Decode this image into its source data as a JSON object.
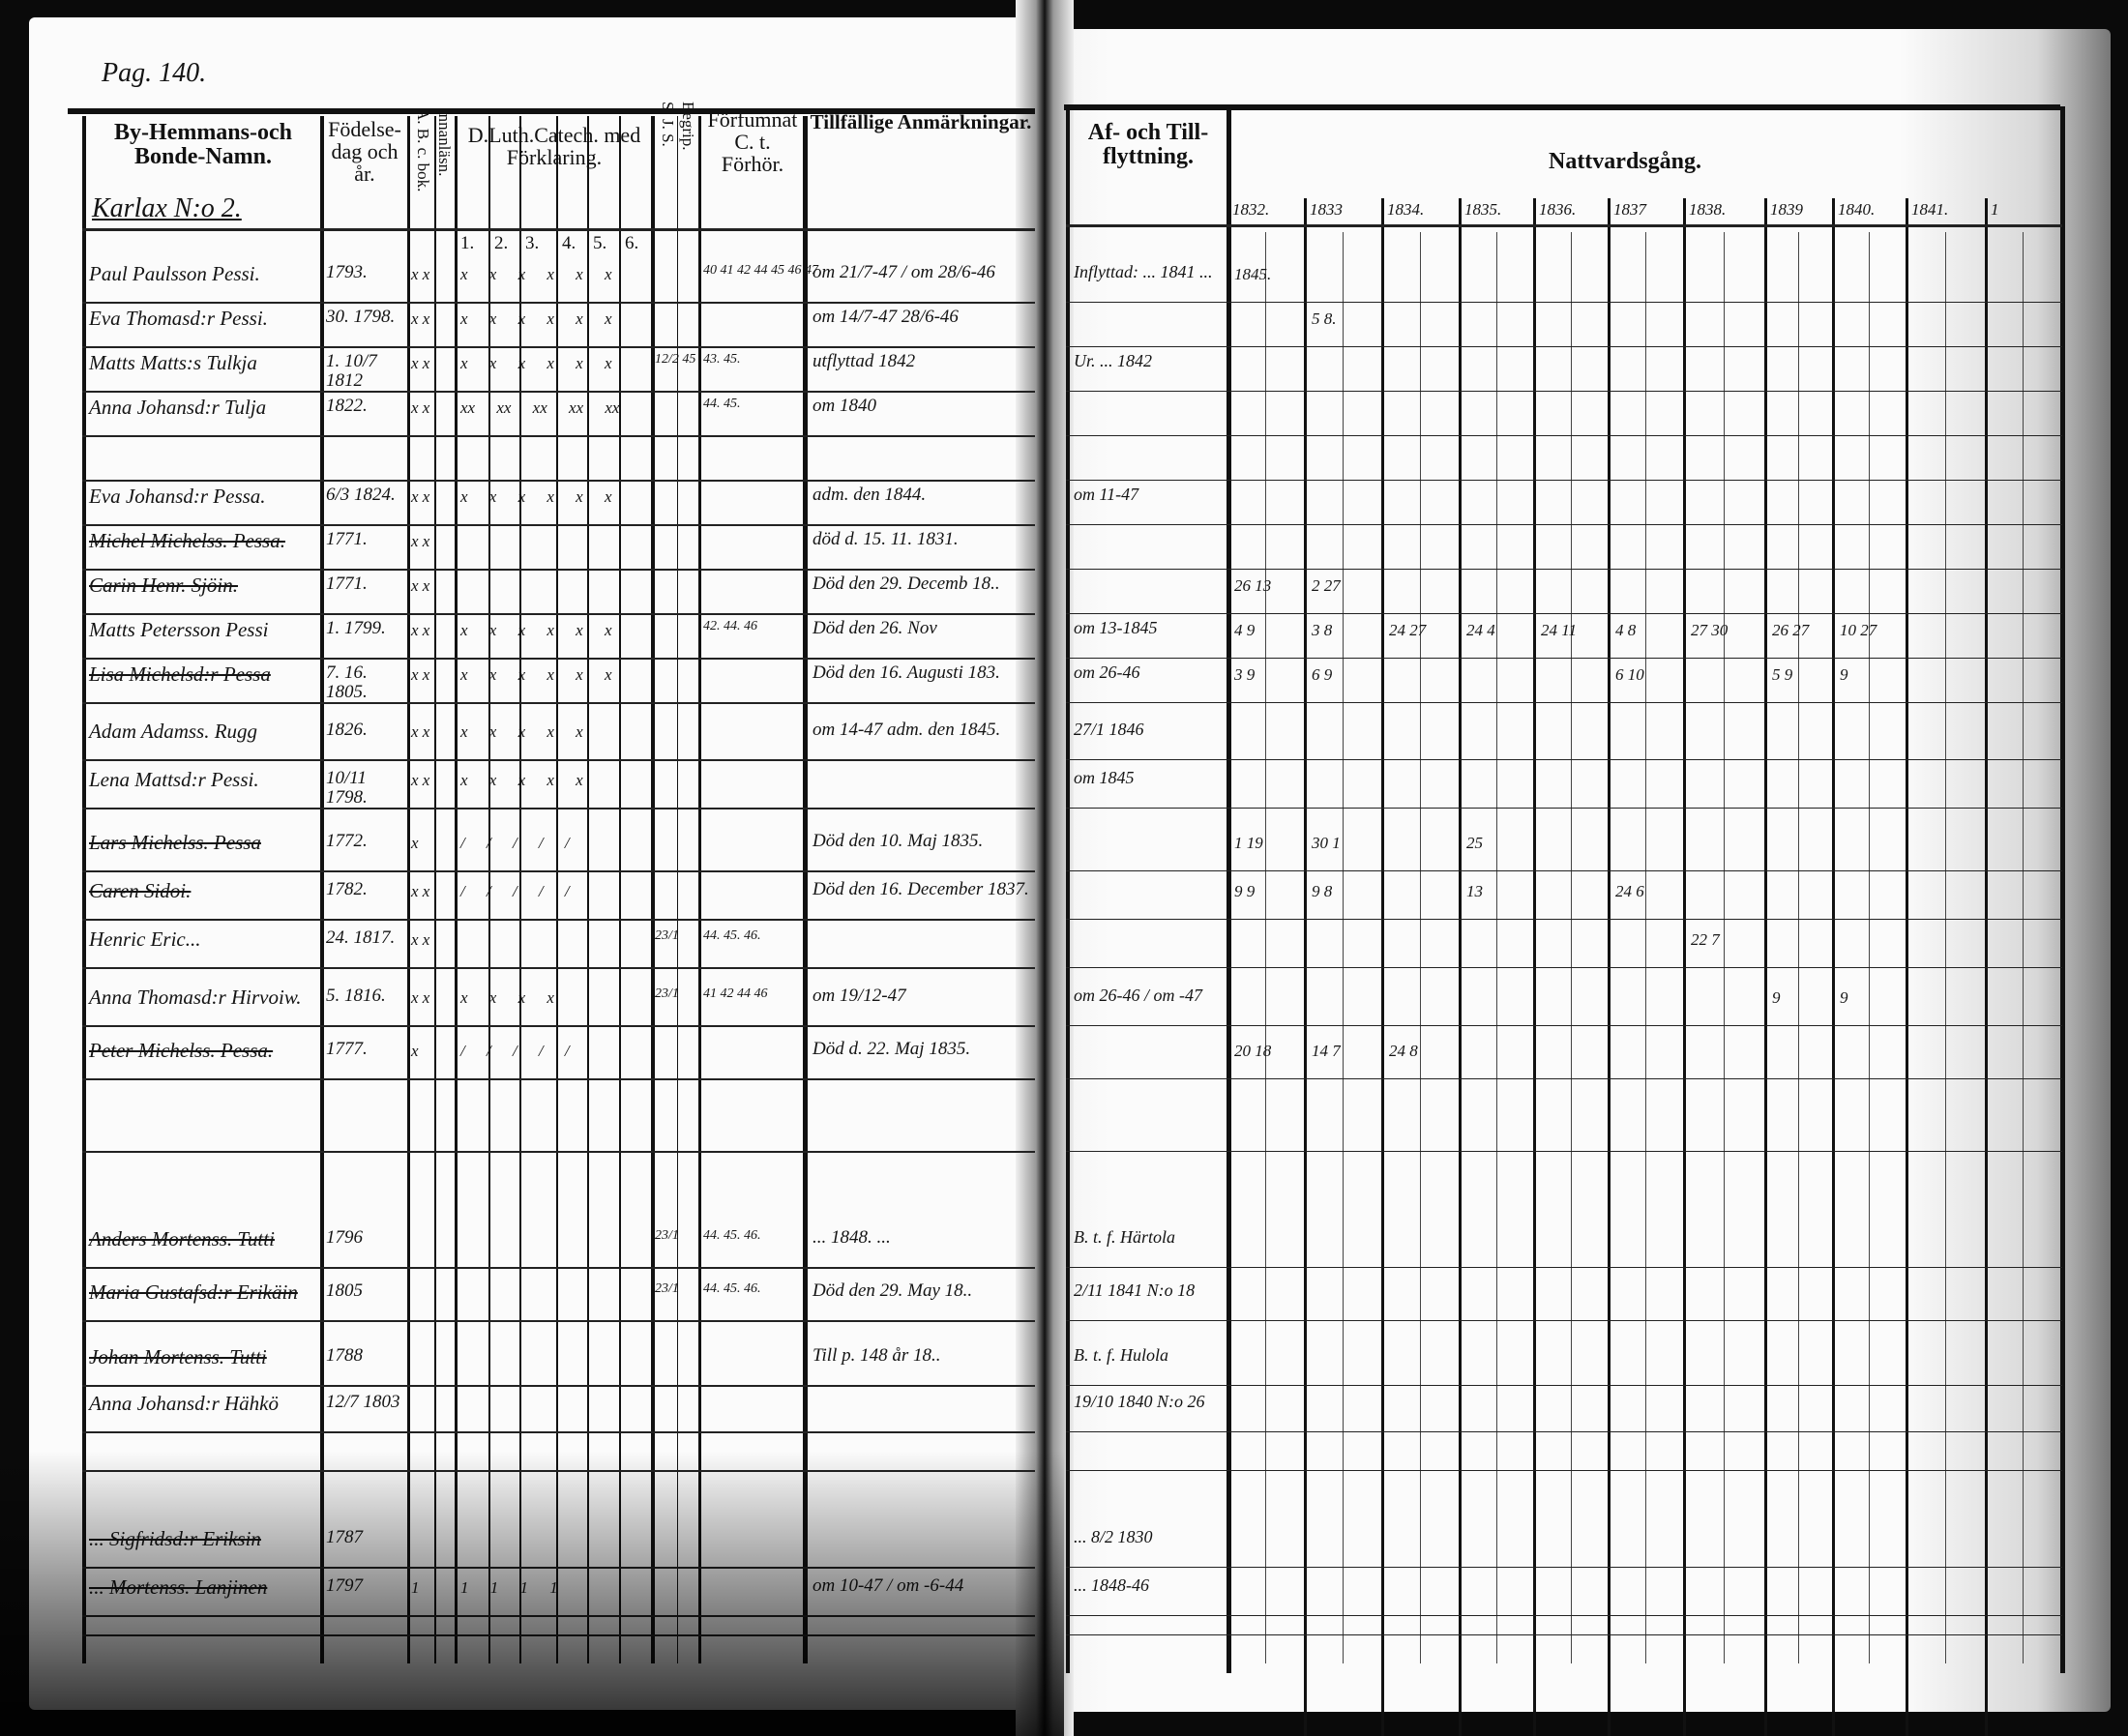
{
  "page_label": "Pag. 140.",
  "left_headers": {
    "name": "By-Hemmans-och Bonde-Namn.",
    "birth": "Födelse-dag och år.",
    "abc": "A. B. c. bok.",
    "innanlasn": "Innanläsn.",
    "catech": "D.Luth.Catech. med Förklaring.",
    "catech_parts": [
      "1.",
      "2.",
      "3.",
      "4.",
      "5.",
      "6."
    ],
    "sjs": "S. J. S.",
    "begrip": "Begrip.",
    "forfum": "Förfumnat C. t. Förhör.",
    "remarks": "Tillfällige Anmärkningar."
  },
  "right_headers": {
    "moved": "Af- och Till-flyttning.",
    "communion": "Nattvardsgång.",
    "years": [
      "1832.",
      "1833",
      "1834.",
      "1835.",
      "1836.",
      "1837",
      "1838.",
      "1839",
      "1840.",
      "1841.",
      "1"
    ]
  },
  "village": "Karlax N:o 2.",
  "rows": [
    {
      "name": "Paul Paulsson Pessi.",
      "birth": "1793.",
      "abc": "x x",
      "cat": "x x x x x x",
      "forh": "40 41 42 44 45 46 47",
      "remark": "om 21/7-47 / om 28/6-46",
      "moved": "Inflyttad: ... 1841 ...",
      "struck": false
    },
    {
      "name": "Eva Thomasd:r Pessi.",
      "birth": "30. 1798.",
      "abc": "x x",
      "cat": "x x x x x x",
      "forh": "",
      "remark": "om 14/7-47 28/6-46",
      "moved": "",
      "struck": false
    },
    {
      "name": "Matts Matts:s Tulkja",
      "birth": "1. 10/7 1812",
      "abc": "x x",
      "cat": "x x x x x x",
      "sjs": "12/2 45",
      "forh": "43. 45.",
      "remark": "utflyttad 1842",
      "moved": "Ur. ... 1842",
      "struck": false
    },
    {
      "name": "Anna Johansd:r Tulja",
      "birth": "1822.",
      "abc": "x x",
      "cat": "xx xx xx xx xx",
      "forh": "44. 45.",
      "remark": "om 1840",
      "moved": "",
      "struck": false
    },
    {
      "name": "",
      "birth": "",
      "abc": "",
      "cat": "",
      "forh": "",
      "remark": "",
      "moved": "",
      "struck": false
    },
    {
      "name": "Eva Johansd:r Pessa.",
      "birth": "6/3 1824.",
      "abc": "x x",
      "cat": "x x x x x x",
      "forh": "",
      "remark": "adm. den 1844.",
      "moved": "om 11-47",
      "struck": false
    },
    {
      "name": "Michel Michelss. Pessa.",
      "birth": "1771.",
      "abc": "x x",
      "cat": "",
      "forh": "",
      "remark": "död d. 15. 11. 1831.",
      "moved": "",
      "struck": true
    },
    {
      "name": "Carin Henr. Sjöin.",
      "birth": "1771.",
      "abc": "x x",
      "cat": "",
      "forh": "",
      "remark": "Död den 29. Decemb 18..",
      "moved": "",
      "struck": true
    },
    {
      "name": "Matts Petersson Pessi",
      "birth": "1. 1799.",
      "abc": "x x",
      "cat": "x x x x x x",
      "forh": "42. 44. 46",
      "remark": "Död den 26. Nov",
      "moved": "om 13-1845",
      "struck": false
    },
    {
      "name": "Lisa Michelsd:r Pessa",
      "birth": "7. 16. 1805.",
      "abc": "x x",
      "cat": "x x x x x x",
      "forh": "",
      "remark": "Död den 16. Augusti 183.",
      "moved": "om 26-46",
      "struck": true
    },
    {
      "name": "Adam Adamss. Rugg",
      "birth": "1826.",
      "abc": "x x",
      "cat": "x x x x x",
      "forh": "",
      "remark": "om 14-47 adm. den 1845.",
      "moved": "27/1 1846",
      "struck": false
    },
    {
      "name": "Lena Mattsd:r Pessi.",
      "birth": "10/11 1798.",
      "abc": "x x",
      "cat": "x x x x x",
      "forh": "",
      "remark": "",
      "moved": "om 1845",
      "struck": false
    },
    {
      "name": "Lars Michelss. Pessa",
      "birth": "1772.",
      "abc": "x",
      "cat": "/ / / / /",
      "forh": "",
      "remark": "Död den 10. Maj 1835.",
      "moved": "",
      "struck": true
    },
    {
      "name": "Caren Sidoi.",
      "birth": "1782.",
      "abc": "x x",
      "cat": "/ / / / /",
      "forh": "",
      "remark": "Död den 16. December 1837.",
      "moved": "",
      "struck": true
    },
    {
      "name": "Henric Eric...",
      "birth": "24. 1817.",
      "abc": "x x",
      "cat": "",
      "sjs": "23/1",
      "forh": "44. 45. 46.",
      "remark": "",
      "moved": "",
      "struck": false
    },
    {
      "name": "Anna Thomasd:r Hirvoiw.",
      "birth": "5. 1816.",
      "abc": "x x",
      "cat": "x x x x",
      "sjs": "23/1",
      "forh": "41 42 44 46",
      "remark": "om 19/12-47",
      "moved": "om 26-46 / om -47",
      "struck": false
    },
    {
      "name": "Peter Michelss. Pessa.",
      "birth": "1777.",
      "abc": "x",
      "cat": "/ / / / /",
      "forh": "",
      "remark": "Död d. 22. Maj 1835.",
      "moved": "",
      "struck": true
    },
    {
      "name": "Anders Mortenss. Tutti",
      "birth": "1796",
      "abc": "",
      "cat": "",
      "sjs": "23/1",
      "forh": "44. 45. 46.",
      "remark": "... 1848. ...",
      "moved": "B. t. f. Härtola",
      "struck": true
    },
    {
      "name": "Maria Gustafsd:r Erikäin",
      "birth": "1805",
      "abc": "",
      "cat": "",
      "sjs": "23/1",
      "forh": "44. 45. 46.",
      "remark": "Död den 29. May 18..",
      "moved": "2/11 1841 N:o 18",
      "struck": true
    },
    {
      "name": "Johan Mortenss. Tutti",
      "birth": "1788",
      "abc": "",
      "cat": "",
      "forh": "",
      "remark": "Till p. 148 år 18..",
      "moved": "B. t. f. Hulola",
      "struck": true
    },
    {
      "name": "Anna Johansd:r Hähkö",
      "birth": "12/7 1803",
      "abc": "",
      "cat": "",
      "forh": "",
      "remark": "",
      "moved": "19/10 1840 N:o 26",
      "struck": false
    },
    {
      "name": "... Sigfridsd:r Eriksin",
      "birth": "1787",
      "abc": "",
      "cat": "",
      "forh": "",
      "remark": "",
      "moved": "... 8/2 1830",
      "struck": true
    },
    {
      "name": "... Mortenss. Lanjinen",
      "birth": "1797",
      "abc": "1",
      "cat": "1 1 1 1",
      "forh": "",
      "remark": "om 10-47 / om -6-44",
      "moved": "... 1848-46",
      "struck": true
    }
  ],
  "communion": [
    {
      "row": 0,
      "col": 0,
      "text": "1845."
    },
    {
      "row": 1,
      "col": 1,
      "text": "5 8."
    },
    {
      "row": 7,
      "col": 0,
      "text": "26 13"
    },
    {
      "row": 7,
      "col": 1,
      "text": "2 27"
    },
    {
      "row": 8,
      "col": 0,
      "text": "4 9"
    },
    {
      "row": 8,
      "col": 1,
      "text": "3 8"
    },
    {
      "row": 8,
      "col": 2,
      "text": "24 27"
    },
    {
      "row": 8,
      "col": 3,
      "text": "24 4"
    },
    {
      "row": 8,
      "col": 4,
      "text": "24 11"
    },
    {
      "row": 8,
      "col": 5,
      "text": "4 8"
    },
    {
      "row": 8,
      "col": 6,
      "text": "27 30"
    },
    {
      "row": 8,
      "col": 7,
      "text": "26 27"
    },
    {
      "row": 8,
      "col": 8,
      "text": "10 27"
    },
    {
      "row": 9,
      "col": 0,
      "text": "3 9"
    },
    {
      "row": 9,
      "col": 1,
      "text": "6 9"
    },
    {
      "row": 9,
      "col": 5,
      "text": "6 10"
    },
    {
      "row": 9,
      "col": 7,
      "text": "5 9"
    },
    {
      "row": 9,
      "col": 8,
      "text": "9"
    },
    {
      "row": 12,
      "col": 0,
      "text": "1 19"
    },
    {
      "row": 12,
      "col": 1,
      "text": "30 1"
    },
    {
      "row": 12,
      "col": 3,
      "text": "25"
    },
    {
      "row": 13,
      "col": 0,
      "text": "9 9"
    },
    {
      "row": 13,
      "col": 1,
      "text": "9 8"
    },
    {
      "row": 13,
      "col": 3,
      "text": "13"
    },
    {
      "row": 13,
      "col": 5,
      "text": "24 6"
    },
    {
      "row": 14,
      "col": 6,
      "text": "22 7"
    },
    {
      "row": 15,
      "col": 7,
      "text": "9"
    },
    {
      "row": 15,
      "col": 8,
      "text": "9"
    },
    {
      "row": 16,
      "col": 0,
      "text": "20 18"
    },
    {
      "row": 16,
      "col": 1,
      "text": "14 7"
    },
    {
      "row": 16,
      "col": 2,
      "text": "24 8"
    }
  ]
}
